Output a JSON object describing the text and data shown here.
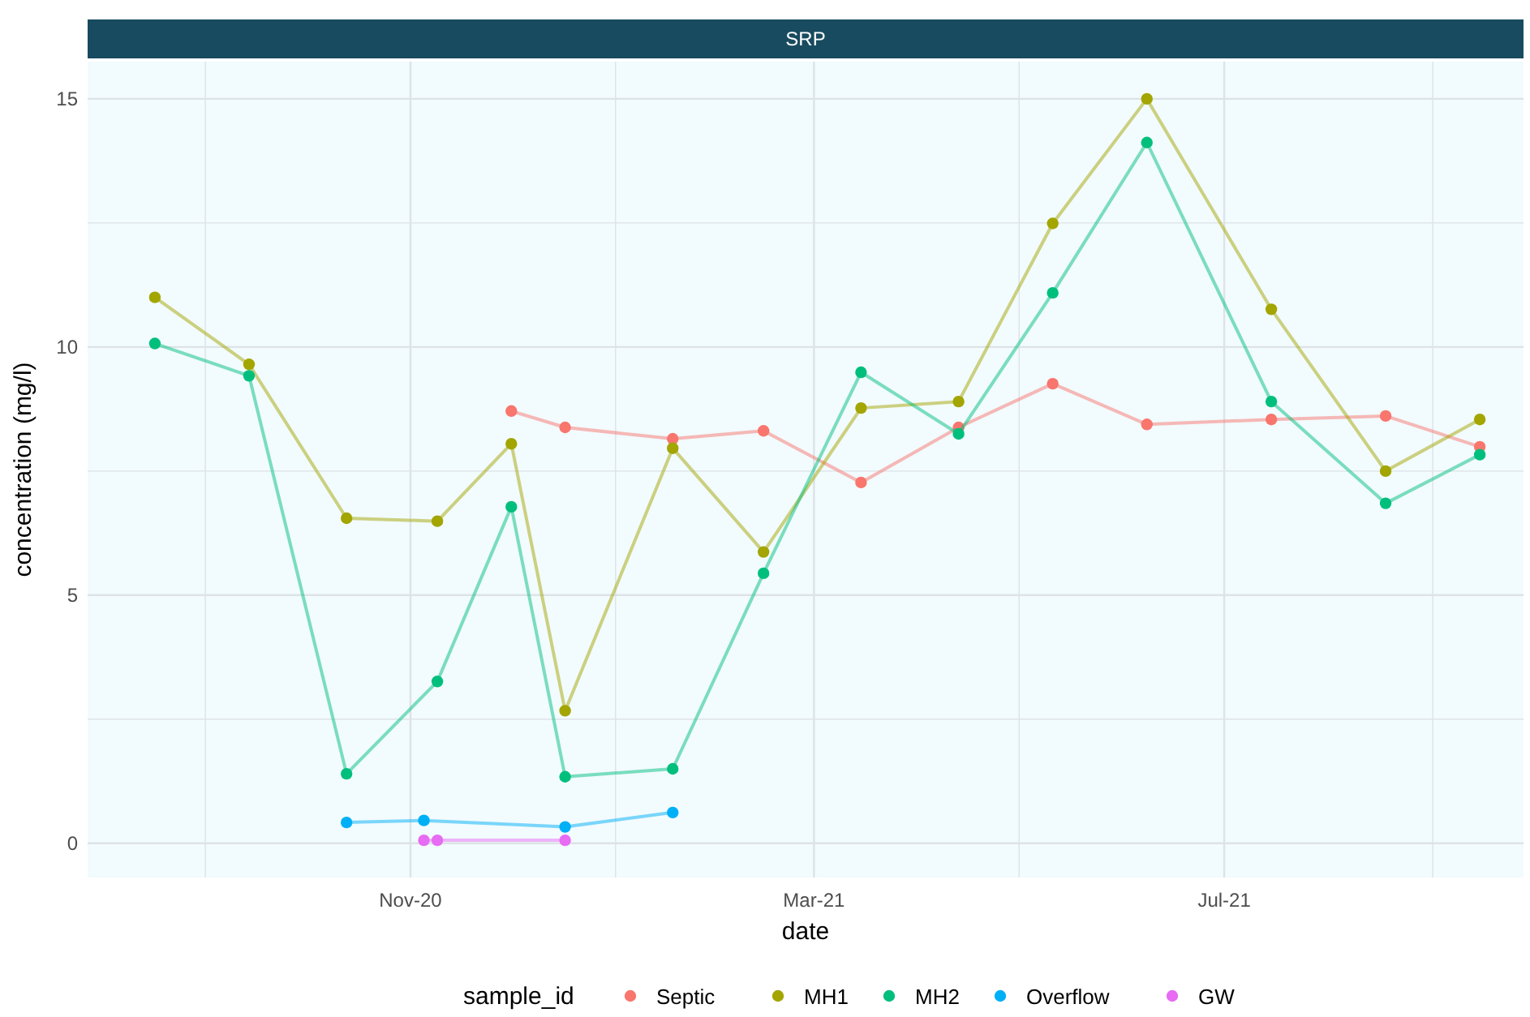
{
  "chart_data": {
    "type": "line",
    "title": "SRP",
    "xlabel": "date",
    "ylabel": "concentration (mg/l)",
    "legend_title": "sample_id",
    "legend": "bottom",
    "grid": true,
    "marker": "circle",
    "line_style": "solid",
    "xlim": [
      "2020-07-28",
      "2021-09-28"
    ],
    "xticks": [
      {
        "value": "2020-09-01",
        "label": null
      },
      {
        "value": "2020-11-01",
        "label": "Nov-20"
      },
      {
        "value": "2021-01-01",
        "label": null
      },
      {
        "value": "2021-03-01",
        "label": "Mar-21"
      },
      {
        "value": "2021-05-01",
        "label": null
      },
      {
        "value": "2021-07-01",
        "label": "Jul-21"
      },
      {
        "value": "2021-09-01",
        "label": null
      }
    ],
    "ylim": [
      -0.69,
      15.75
    ],
    "yticks": [
      0,
      {
        "value": 2.5,
        "label": null
      },
      5,
      {
        "value": 7.5,
        "label": null
      },
      10,
      {
        "value": 12.5,
        "label": null
      },
      15
    ],
    "series": [
      {
        "name": "Septic",
        "color": "#f8766d",
        "x": [
          "2020-12-01",
          "2020-12-17",
          "2021-01-18",
          "2021-02-14",
          "2021-03-15",
          "2021-04-13",
          "2021-05-11",
          "2021-06-08",
          "2021-07-15",
          "2021-08-18",
          "2021-09-15"
        ],
        "values": [
          8.71,
          8.38,
          8.15,
          8.31,
          7.27,
          8.38,
          9.26,
          8.44,
          8.54,
          8.61,
          7.99
        ]
      },
      {
        "name": "MH1",
        "color": "#a3a500",
        "x": [
          "2020-08-17",
          "2020-09-14",
          "2020-10-13",
          "2020-11-09",
          "2020-12-01",
          "2020-12-17",
          "2021-01-18",
          "2021-02-14",
          "2021-03-15",
          "2021-04-13",
          "2021-05-11",
          "2021-06-08",
          "2021-07-15",
          "2021-08-18",
          "2021-09-15"
        ],
        "values": [
          11.0,
          9.65,
          6.55,
          6.49,
          8.05,
          2.67,
          7.96,
          5.87,
          8.77,
          8.9,
          12.49,
          15.0,
          10.76,
          7.5,
          8.54
        ]
      },
      {
        "name": "MH2",
        "color": "#00bf7d",
        "x": [
          "2020-08-17",
          "2020-09-14",
          "2020-10-13",
          "2020-11-09",
          "2020-12-01",
          "2020-12-17",
          "2021-01-18",
          "2021-02-14",
          "2021-03-15",
          "2021-04-13",
          "2021-05-11",
          "2021-06-08",
          "2021-07-15",
          "2021-08-18",
          "2021-09-15"
        ],
        "values": [
          10.07,
          9.42,
          1.4,
          3.26,
          6.78,
          1.34,
          1.5,
          5.44,
          9.49,
          8.25,
          11.09,
          14.12,
          8.9,
          6.85,
          7.83
        ]
      },
      {
        "name": "Overflow",
        "color": "#00b0f6",
        "x": [
          "2020-10-13",
          "2020-11-05",
          "2020-12-17",
          "2021-01-18"
        ],
        "values": [
          0.42,
          0.46,
          0.33,
          0.62
        ]
      },
      {
        "name": "GW",
        "color": "#e76bf3",
        "x": [
          "2020-11-05",
          "2020-11-09",
          "2020-12-17"
        ],
        "values": [
          0.06,
          0.06,
          0.06
        ]
      }
    ]
  }
}
